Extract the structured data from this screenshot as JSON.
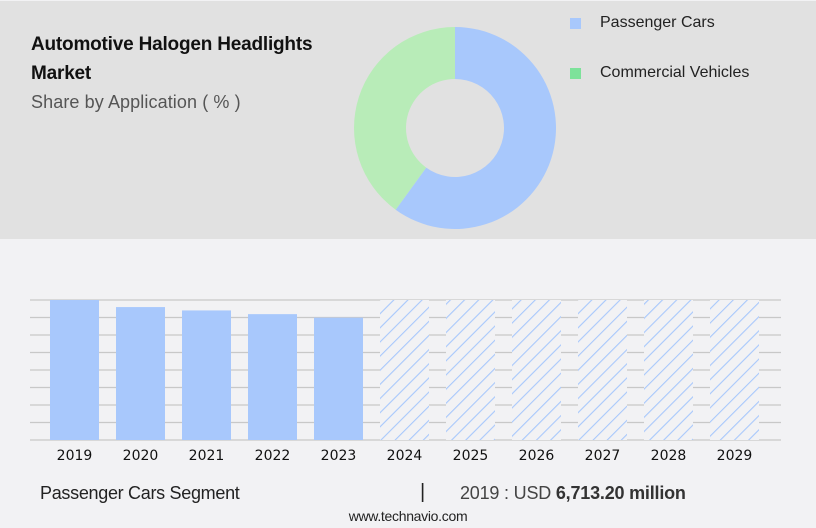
{
  "header": {
    "title": "Automotive Halogen Headlights Market",
    "subtitle": "Share by Application ( % )"
  },
  "legend": [
    {
      "label": "Passenger Cars",
      "color": "#a8c8fc"
    },
    {
      "label": "Commercial Vehicles",
      "color": "#7de29a"
    }
  ],
  "footer": {
    "segment_label": "Passenger Cars Segment",
    "separator": "|",
    "value_prefix": "2019 : USD ",
    "value_bold": "6,713.20 million",
    "source_url": "www.technavio.com"
  },
  "chart_data": [
    {
      "type": "pie",
      "subtype": "donut",
      "title": "Automotive Halogen Headlights Market",
      "subtitle": "Share by Application ( % )",
      "categories": [
        "Passenger Cars",
        "Commercial Vehicles"
      ],
      "values": [
        60,
        40
      ],
      "colors": [
        "#a8c8fc",
        "#b8ecb8"
      ],
      "legend_position": "right"
    },
    {
      "type": "bar",
      "title": "Passenger Cars Segment",
      "categories": [
        "2019",
        "2020",
        "2021",
        "2022",
        "2023",
        "2024",
        "2025",
        "2026",
        "2027",
        "2028",
        "2029"
      ],
      "values": [
        6713.2,
        6374,
        6213,
        6035,
        5866,
        null,
        null,
        null,
        null,
        null,
        null
      ],
      "forecast": [
        false,
        false,
        false,
        false,
        false,
        true,
        true,
        true,
        true,
        true,
        true
      ],
      "unit": "USD million",
      "xlabel": "",
      "ylabel": "",
      "ylim": [
        0,
        6713.2
      ],
      "grid": true,
      "gridlines": 8,
      "bar_color": "#a8c8fc",
      "forecast_style": "hatched",
      "annotation": "2019 : USD 6,713.20 million"
    }
  ]
}
